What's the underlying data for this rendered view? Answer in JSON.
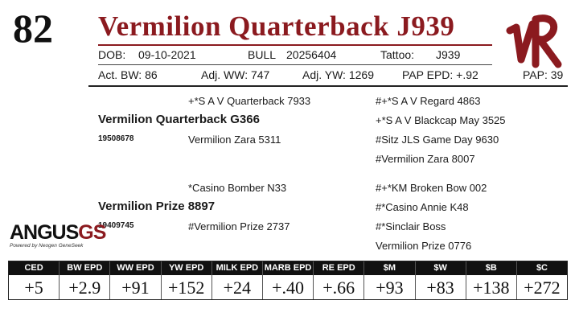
{
  "lot": "82",
  "name": "Vermilion Quarterback J939",
  "info": {
    "dob_label": "DOB:",
    "dob": "09-10-2021",
    "sex_label": "BULL",
    "reg": "20256404",
    "tattoo_label": "Tattoo:",
    "tattoo": "J939"
  },
  "stats": {
    "act_bw": "Act. BW: 86",
    "adj_ww": "Adj. WW: 747",
    "adj_yw": "Adj. YW: 1269",
    "pap_epd": "PAP EPD: +.92",
    "pap": "PAP: 39"
  },
  "pedigree": {
    "sire": "Vermilion Quarterback G366",
    "sire_reg": "19508678",
    "sire_sire": "+*S A V Quarterback 7933",
    "sire_dam": "Vermilion Zara 5311",
    "sss": "#+*S A V Regard 4863",
    "ssd": "+*S A V Blackcap May 3525",
    "sds": "#Sitz JLS Game Day 9630",
    "sdd": "#Vermilion Zara 8007",
    "dam": "Vermilion Prize 8897",
    "dam_reg": "19409745",
    "dam_sire": "*Casino Bomber N33",
    "dam_dam": "#Vermilion Prize 2737",
    "dss": "#+*KM Broken Bow 002",
    "dsd": "#*Casino Annie K48",
    "dds": "#*Sinclair Boss",
    "ddd": "Vermilion Prize 0776"
  },
  "brand": {
    "logo_letters": "VR",
    "angus_word": "ANGUS",
    "angus_gs": "GS",
    "angus_tag": "Powered by Neogen GeneSeek"
  },
  "epds": [
    {
      "label": "CED",
      "value": "+5"
    },
    {
      "label": "BW EPD",
      "value": "+2.9"
    },
    {
      "label": "WW EPD",
      "value": "+91"
    },
    {
      "label": "YW EPD",
      "value": "+152"
    },
    {
      "label": "MILK EPD",
      "value": "+24"
    },
    {
      "label": "MARB EPD",
      "value": "+.40"
    },
    {
      "label": "RE EPD",
      "value": "+.66"
    },
    {
      "label": "$M",
      "value": "+93"
    },
    {
      "label": "$W",
      "value": "+83"
    },
    {
      "label": "$B",
      "value": "+138"
    },
    {
      "label": "$C",
      "value": "+272"
    }
  ],
  "colors": {
    "accent": "#8b1a1f",
    "dark": "#111111"
  }
}
